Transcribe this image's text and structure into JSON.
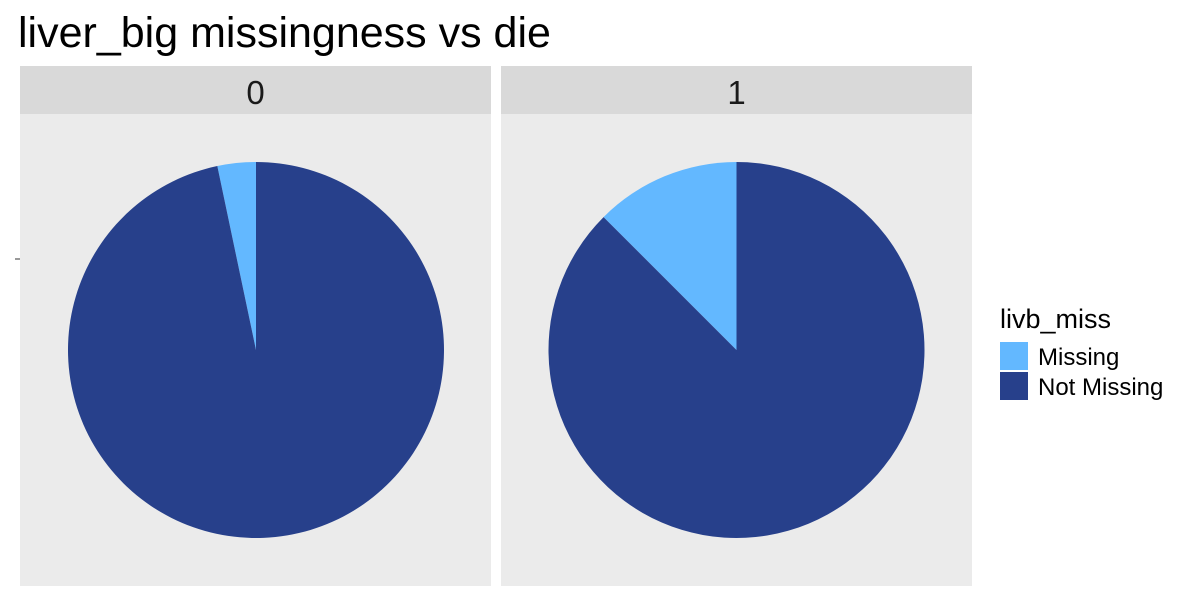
{
  "chart_data": {
    "type": "pie",
    "title": "liver_big missingness vs die",
    "facet_variable": "die",
    "legend": {
      "title": "livb_miss",
      "position": "right",
      "entries": [
        {
          "label": "Missing",
          "color": "#63B8FF"
        },
        {
          "label": "Not Missing",
          "color": "#27408B"
        }
      ]
    },
    "colors": {
      "panel_background": "#EBEBEB",
      "strip_background": "#D9D9D9",
      "strip_text": "#1A1A1A"
    },
    "facets": [
      {
        "label": "0",
        "slices": [
          {
            "category": "Missing",
            "share": 0.033
          },
          {
            "category": "Not Missing",
            "share": 0.967
          }
        ]
      },
      {
        "label": "1",
        "slices": [
          {
            "category": "Missing",
            "share": 0.125
          },
          {
            "category": "Not Missing",
            "share": 0.875
          }
        ]
      }
    ]
  }
}
